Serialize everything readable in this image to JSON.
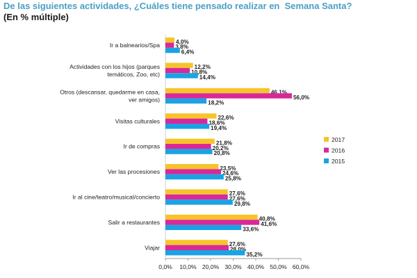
{
  "chart_data": {
    "type": "bar",
    "orientation": "horizontal",
    "title": "De las siguientes actividades, ¿Cuáles tiene pensado realizar en  Semana Santa?",
    "subtitle": "(En % múltiple)",
    "categories": [
      [
        "Ir a balnearios/Spa"
      ],
      [
        "Actividades con los hijos (parques",
        "temáticos, Zoo, etc)"
      ],
      [
        "Otros (descansar, quedarme en casa,",
        "ver amigos)"
      ],
      [
        "Visitas culturales"
      ],
      [
        "Ir de compras"
      ],
      [
        "Ver las procesiones"
      ],
      [
        "Ir al cine/teatro/musical/concierto"
      ],
      [
        "Salir a restaurantes"
      ],
      [
        "Viajar"
      ]
    ],
    "series": [
      {
        "name": "2017",
        "color": "#f6c42a",
        "values": [
          4.0,
          12.2,
          46.1,
          22.6,
          21.8,
          23.5,
          27.6,
          40.8,
          27.6
        ],
        "labels": [
          "4,0%",
          "12,2%",
          "46,1%",
          "22,6%",
          "21,8%",
          "23,5%",
          "27,6%",
          "40,8%",
          "27,6%"
        ]
      },
      {
        "name": "2016",
        "color": "#d9289a",
        "values": [
          3.8,
          10.8,
          56.0,
          18.6,
          20.2,
          24.6,
          27.6,
          41.6,
          28.0
        ],
        "labels": [
          "3,8%",
          "10,8%",
          "56,0%",
          "18,6%",
          "20,2%",
          "24,6%",
          "27,6%",
          "41,6%",
          "28,0%"
        ]
      },
      {
        "name": "2015",
        "color": "#1aa3e3",
        "values": [
          6.4,
          14.4,
          18.2,
          19.4,
          20.8,
          25.8,
          29.8,
          33.6,
          35.2
        ],
        "labels": [
          "6,4%",
          "14,4%",
          "18,2%",
          "19,4%",
          "20,8%",
          "25,8%",
          "29,8%",
          "33,6%",
          "35,2%"
        ]
      }
    ],
    "xlim": [
      0,
      60
    ],
    "xticks": [
      0,
      10,
      20,
      30,
      40,
      50,
      60
    ],
    "xtick_labels": [
      "0,0%",
      "10,0%",
      "20,0%",
      "30,0%",
      "40,0%",
      "50,0%",
      "60,0%"
    ],
    "legend": [
      "2017",
      "2016",
      "2015"
    ],
    "legend_position": "right",
    "grid": false
  }
}
